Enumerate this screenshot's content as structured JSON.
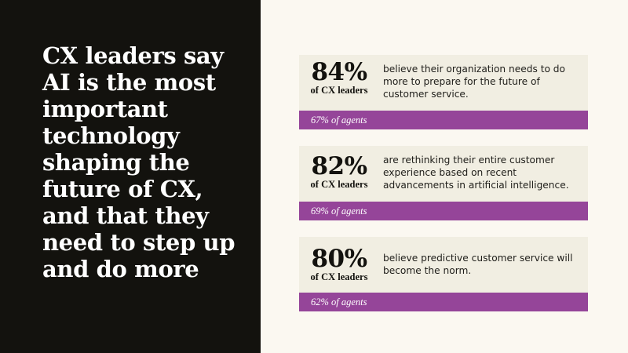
{
  "headline": "CX leaders say AI is the most important technology shaping the future of CX, and that they need to step up and do more",
  "colors": {
    "dark_panel": "#13120e",
    "light_panel": "#fbf8f1",
    "card": "#f1eee2",
    "accent_bar": "#954599"
  },
  "stats": [
    {
      "value": "84%",
      "label": "of CX leaders",
      "description": "believe their organization needs to do more to prepare for the future of customer service.",
      "agents": "67% of agents"
    },
    {
      "value": "82%",
      "label": "of CX leaders",
      "description": "are rethinking their entire customer experience based on recent advancements in artificial intelligence.",
      "agents": "69% of agents"
    },
    {
      "value": "80%",
      "label": "of CX leaders",
      "description": "believe predictive customer service will become the norm.",
      "agents": "62% of agents"
    }
  ]
}
